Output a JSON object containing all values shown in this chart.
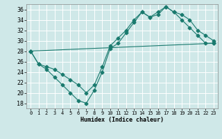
{
  "xlabel": "Humidex (Indice chaleur)",
  "bg_color": "#cfe8e8",
  "grid_color": "#ffffff",
  "line_color": "#1a7a6e",
  "xlim": [
    -0.5,
    23.5
  ],
  "ylim": [
    17,
    37
  ],
  "yticks": [
    18,
    20,
    22,
    24,
    26,
    28,
    30,
    32,
    34,
    36
  ],
  "xticks": [
    0,
    1,
    2,
    3,
    4,
    5,
    6,
    7,
    8,
    9,
    10,
    11,
    12,
    13,
    14,
    15,
    16,
    17,
    18,
    19,
    20,
    21,
    22,
    23
  ],
  "line1_x": [
    0,
    1,
    2,
    3,
    4,
    5,
    6,
    7,
    8,
    9,
    10,
    11,
    12,
    13,
    14,
    15,
    16,
    17,
    18,
    19,
    20,
    21,
    22,
    23
  ],
  "line1_y": [
    28,
    25.5,
    24.5,
    23,
    21.5,
    20,
    18.5,
    18,
    20.5,
    24,
    28.5,
    29.5,
    31.5,
    33.5,
    35.5,
    34.5,
    35,
    36.5,
    35.5,
    34,
    32.5,
    31,
    29.5,
    29.5
  ],
  "line2_x": [
    0,
    23
  ],
  "line2_y": [
    28,
    29.5
  ],
  "line3_x": [
    0,
    1,
    2,
    3,
    4,
    5,
    6,
    7,
    8,
    9,
    10,
    11,
    12,
    13,
    14,
    15,
    16,
    17,
    18,
    19,
    20,
    21,
    22,
    23
  ],
  "line3_y": [
    28,
    25.5,
    25,
    24.5,
    23.5,
    22.5,
    21.5,
    20,
    21.5,
    25,
    29,
    30.5,
    32,
    34,
    35.5,
    34.5,
    35.5,
    36.5,
    35.5,
    35,
    34,
    32,
    31,
    30
  ]
}
